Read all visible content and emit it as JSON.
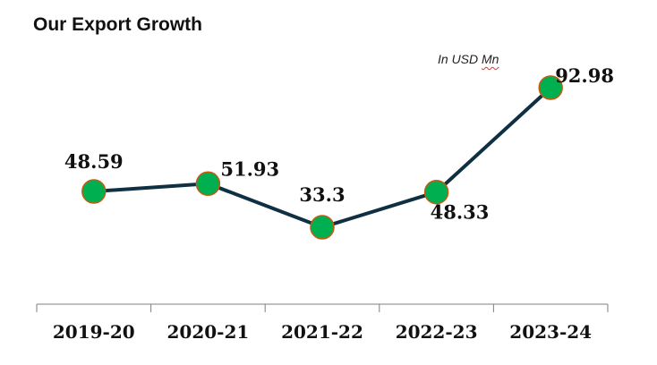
{
  "title": "Our Export Growth",
  "unit_note": {
    "prefix": "In USD ",
    "unit": "Mn"
  },
  "colors": {
    "line": "#0f3042",
    "marker_fill": "#00b050",
    "marker_stroke": "#c55a11",
    "axis": "#7f7f7f",
    "text": "#111111"
  },
  "chart_data": {
    "type": "line",
    "title": "Our Export Growth",
    "xlabel": "",
    "ylabel": "",
    "unit": "In USD Mn",
    "categories": [
      "2019-20",
      "2020-21",
      "2021-22",
      "2022-23",
      "2023-24"
    ],
    "series": [
      {
        "values": [
          48.59,
          51.93,
          33.3,
          48.33,
          92.98
        ],
        "labels": [
          "48.59",
          "51.93",
          "33.3",
          "48.33",
          "92.98"
        ]
      }
    ],
    "ylim": [
      0,
      100
    ],
    "grid": false,
    "legend": "none",
    "markers": "circle"
  }
}
